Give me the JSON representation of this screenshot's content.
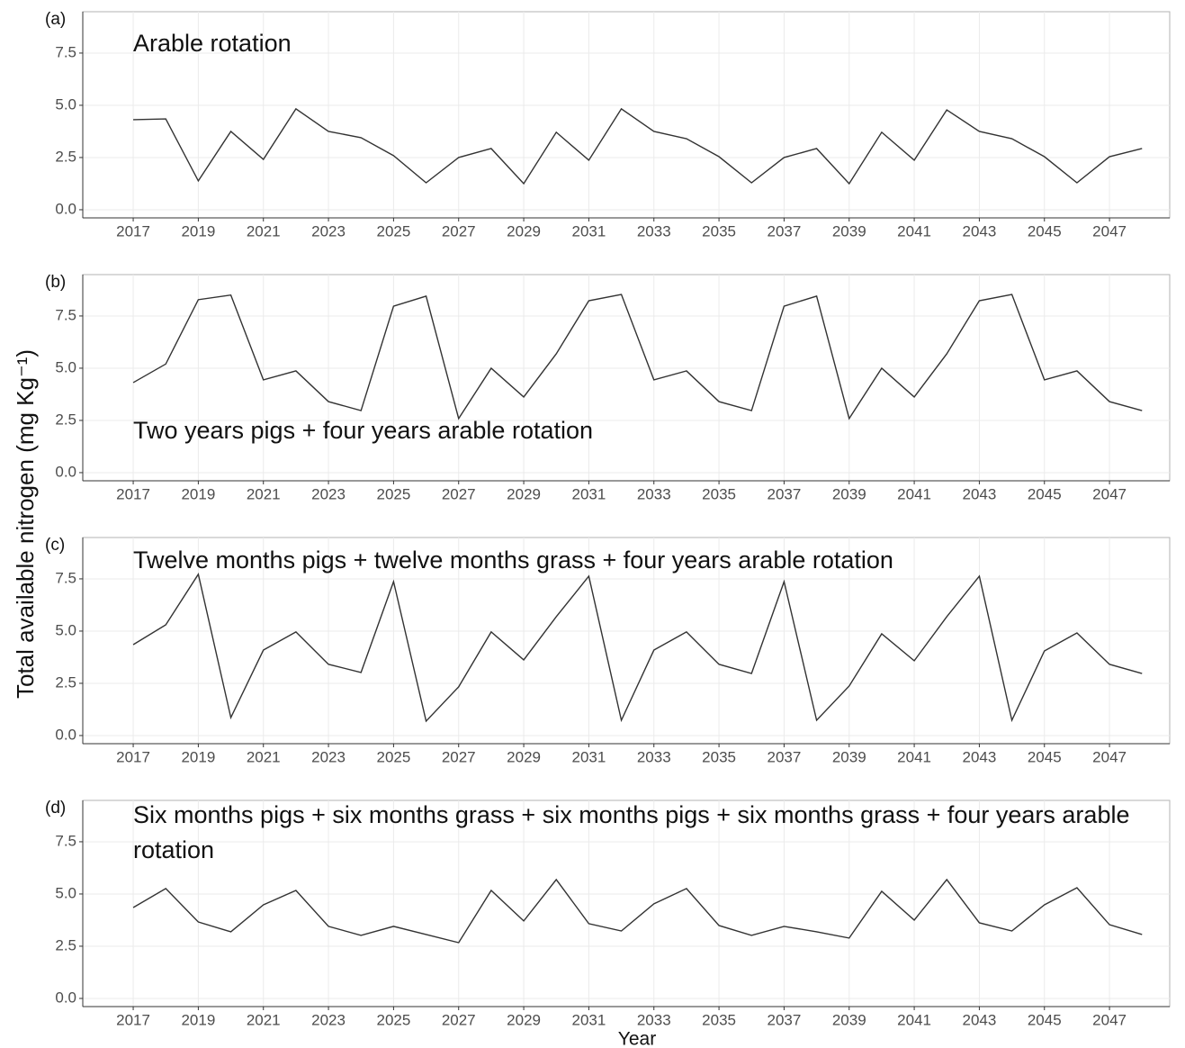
{
  "ylabel": "Total available nitrogen (mg Kg⁻¹)",
  "xlabel": "Year",
  "chart_data": [
    {
      "type": "line",
      "panel_label": "(a)",
      "title": "Arable rotation",
      "x": [
        2017,
        2018,
        2019,
        2020,
        2021,
        2022,
        2023,
        2024,
        2025,
        2026,
        2027,
        2028,
        2029,
        2030,
        2031,
        2032,
        2033,
        2034,
        2035,
        2036,
        2037,
        2038,
        2039,
        2040,
        2041,
        2042,
        2043,
        2044,
        2045,
        2046,
        2047,
        2048
      ],
      "values": [
        4.31,
        4.35,
        1.38,
        3.75,
        2.41,
        4.83,
        3.75,
        3.45,
        2.59,
        1.29,
        2.5,
        2.93,
        1.25,
        3.71,
        2.37,
        4.83,
        3.75,
        3.4,
        2.54,
        1.29,
        2.5,
        2.93,
        1.25,
        3.71,
        2.37,
        4.78,
        3.75,
        3.4,
        2.54,
        1.29,
        2.54,
        2.93
      ],
      "color": "#333333",
      "xlim": [
        2015.45,
        2048.85
      ],
      "ylim": [
        -0.39,
        9.48
      ],
      "xticks": [
        2017,
        2019,
        2021,
        2023,
        2025,
        2027,
        2029,
        2031,
        2033,
        2035,
        2037,
        2039,
        2041,
        2043,
        2045,
        2047
      ],
      "yticks": [
        {
          "value": 0,
          "label": "0.0"
        },
        2.5,
        {
          "value": 5,
          "label": "5.0"
        },
        7.5
      ],
      "grid": true
    },
    {
      "type": "line",
      "panel_label": "(b)",
      "title": "Two years pigs + four years arable rotation",
      "x": [
        2017,
        2018,
        2019,
        2020,
        2021,
        2022,
        2023,
        2024,
        2025,
        2026,
        2027,
        2028,
        2029,
        2030,
        2031,
        2032,
        2033,
        2034,
        2035,
        2036,
        2037,
        2038,
        2039,
        2040,
        2041,
        2042,
        2043,
        2044,
        2045,
        2046,
        2047,
        2048
      ],
      "values": [
        4.31,
        5.2,
        8.28,
        8.5,
        4.44,
        4.87,
        3.4,
        2.97,
        7.97,
        8.45,
        2.59,
        5.0,
        3.62,
        5.69,
        8.23,
        8.53,
        4.44,
        4.87,
        3.4,
        2.97,
        7.97,
        8.45,
        2.59,
        5.0,
        3.62,
        5.69,
        8.23,
        8.53,
        4.44,
        4.87,
        3.4,
        2.97
      ],
      "color": "#333333",
      "xlim": [
        2015.45,
        2048.85
      ],
      "ylim": [
        -0.39,
        9.48
      ],
      "xticks": [
        2017,
        2019,
        2021,
        2023,
        2025,
        2027,
        2029,
        2031,
        2033,
        2035,
        2037,
        2039,
        2041,
        2043,
        2045,
        2047
      ],
      "yticks": [
        {
          "value": 0,
          "label": "0.0"
        },
        2.5,
        {
          "value": 5,
          "label": "5.0"
        },
        7.5
      ],
      "grid": true
    },
    {
      "type": "line",
      "panel_label": "(c)",
      "title": "Twelve months pigs + twelve months grass + four years arable rotation",
      "x": [
        2017,
        2018,
        2019,
        2020,
        2021,
        2022,
        2023,
        2024,
        2025,
        2026,
        2027,
        2028,
        2029,
        2030,
        2031,
        2032,
        2033,
        2034,
        2035,
        2036,
        2037,
        2038,
        2039,
        2040,
        2041,
        2042,
        2043,
        2044,
        2045,
        2046,
        2047,
        2048
      ],
      "values": [
        4.35,
        5.3,
        7.72,
        0.86,
        4.09,
        4.96,
        3.41,
        3.02,
        7.37,
        0.69,
        2.33,
        4.96,
        3.62,
        5.69,
        7.63,
        0.73,
        4.09,
        4.96,
        3.41,
        2.97,
        7.37,
        0.73,
        2.37,
        4.87,
        3.58,
        5.69,
        7.63,
        0.73,
        4.05,
        4.91,
        3.41,
        2.97
      ],
      "color": "#333333",
      "xlim": [
        2015.45,
        2048.85
      ],
      "ylim": [
        -0.39,
        9.48
      ],
      "xticks": [
        2017,
        2019,
        2021,
        2023,
        2025,
        2027,
        2029,
        2031,
        2033,
        2035,
        2037,
        2039,
        2041,
        2043,
        2045,
        2047
      ],
      "yticks": [
        {
          "value": 0,
          "label": "0.0"
        },
        2.5,
        {
          "value": 5,
          "label": "5.0"
        },
        7.5
      ],
      "grid": true
    },
    {
      "type": "line",
      "panel_label": "(d)",
      "title": "Six months pigs + six months grass + six months pigs + six months grass + four years arable rotation",
      "x": [
        2017,
        2018,
        2019,
        2020,
        2021,
        2022,
        2023,
        2024,
        2025,
        2026,
        2027,
        2028,
        2029,
        2030,
        2031,
        2032,
        2033,
        2034,
        2035,
        2036,
        2037,
        2038,
        2039,
        2040,
        2041,
        2042,
        2043,
        2044,
        2045,
        2046,
        2047,
        2048
      ],
      "values": [
        4.35,
        5.26,
        3.66,
        3.19,
        4.48,
        5.17,
        3.45,
        3.02,
        3.45,
        3.06,
        2.67,
        5.17,
        3.71,
        5.69,
        3.58,
        3.23,
        4.53,
        5.26,
        3.49,
        3.02,
        3.45,
        3.19,
        2.89,
        5.13,
        3.75,
        5.69,
        3.62,
        3.23,
        4.48,
        5.3,
        3.53,
        3.06
      ],
      "color": "#333333",
      "xlim": [
        2015.45,
        2048.85
      ],
      "ylim": [
        -0.39,
        9.48
      ],
      "xticks": [
        2017,
        2019,
        2021,
        2023,
        2025,
        2027,
        2029,
        2031,
        2033,
        2035,
        2037,
        2039,
        2041,
        2043,
        2045,
        2047
      ],
      "yticks": [
        {
          "value": 0,
          "label": "0.0"
        },
        2.5,
        {
          "value": 5,
          "label": "5.0"
        },
        7.5
      ],
      "grid": true
    }
  ]
}
